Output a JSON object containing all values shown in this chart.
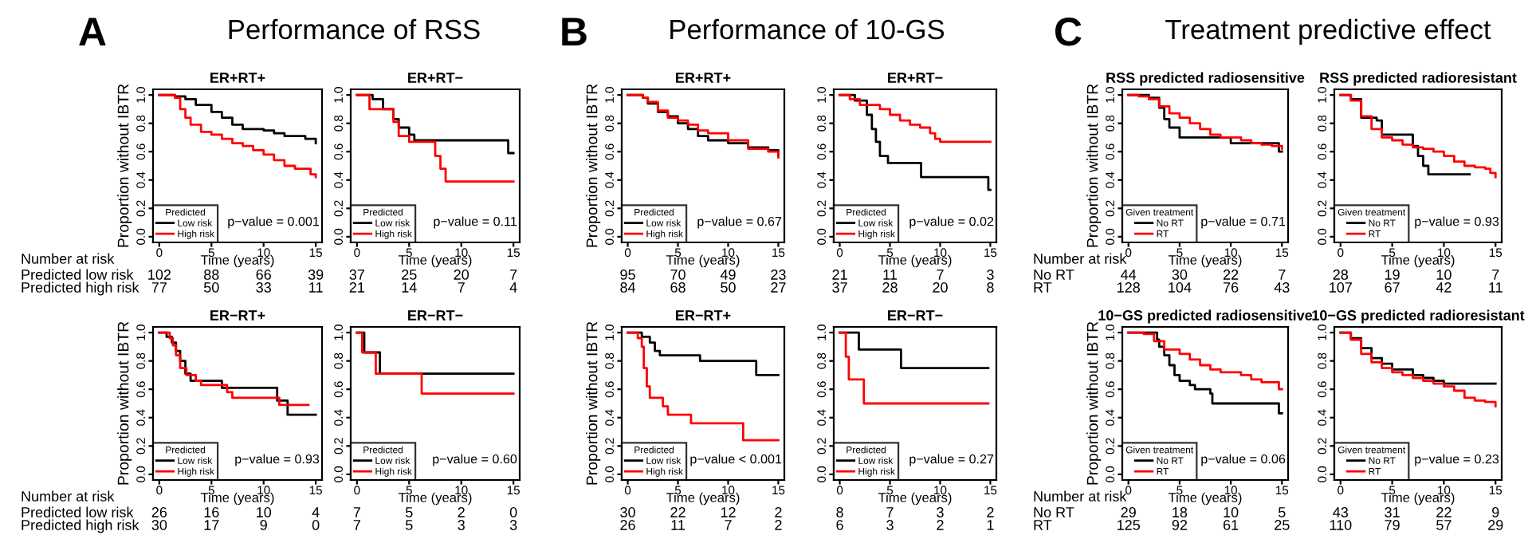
{
  "chart_data": [
    {
      "type": "other",
      "title": "Performance of RSS",
      "annotations": [
        "A"
      ]
    },
    {
      "type": "step",
      "title": "ER+RT+",
      "xlabel": "Time (years)",
      "ylabel": "Proportion without IBTR",
      "legend_title": "Predicted",
      "legend": "bottom left",
      "xlim": [
        -0.6,
        15.6
      ],
      "ylim": [
        -0.04,
        1.04
      ],
      "xticks": [
        0,
        5,
        10,
        15
      ],
      "yticks": [
        {
          "value": 0,
          "label": "0.0"
        },
        {
          "value": 0.2,
          "label": "0.2"
        },
        {
          "value": 0.4,
          "label": "0.4"
        },
        {
          "value": 0.6,
          "label": "0.6"
        },
        {
          "value": 0.8,
          "label": "0.8"
        },
        {
          "value": 1,
          "label": "1.0"
        }
      ],
      "annotations": [
        "p−value = 0.001",
        "102 88 66 39",
        "77 50 33 11"
      ],
      "series": [
        {
          "name": "Low risk",
          "color": "#000000",
          "x": [
            0,
            1.5,
            2.5,
            3.5,
            5,
            6,
            7,
            8,
            10,
            11,
            12,
            14,
            15
          ],
          "values": [
            1,
            0.99,
            0.97,
            0.93,
            0.88,
            0.84,
            0.79,
            0.76,
            0.75,
            0.73,
            0.71,
            0.69,
            0.66
          ]
        },
        {
          "name": "High risk",
          "color": "#ff0000",
          "x": [
            0,
            1.5,
            2,
            2.5,
            3,
            4,
            5,
            6,
            7,
            8,
            9,
            10,
            11,
            12,
            13,
            14.5,
            15
          ],
          "values": [
            1,
            0.98,
            0.9,
            0.84,
            0.79,
            0.74,
            0.72,
            0.69,
            0.66,
            0.64,
            0.61,
            0.58,
            0.54,
            0.5,
            0.48,
            0.44,
            0.42
          ]
        }
      ]
    },
    {
      "type": "step",
      "title": "ER+RT−",
      "xlabel": "Time (years)",
      "legend_title": "Predicted",
      "legend": "bottom left",
      "xlim": [
        -0.6,
        15.6
      ],
      "ylim": [
        -0.04,
        1.04
      ],
      "xticks": [
        0,
        5,
        10,
        15
      ],
      "yticks": [
        {
          "value": 0,
          "label": "0.0"
        },
        {
          "value": 0.2,
          "label": "0.2"
        },
        {
          "value": 0.4,
          "label": "0.4"
        },
        {
          "value": 0.6,
          "label": "0.6"
        },
        {
          "value": 0.8,
          "label": "0.8"
        },
        {
          "value": 1,
          "label": "1.0"
        }
      ],
      "annotations": [
        "p−value = 0.11",
        "37 25 20 7",
        "21 14 7 4"
      ],
      "series": [
        {
          "name": "Low risk",
          "color": "#000000",
          "x": [
            0,
            1.5,
            2.5,
            3.5,
            4,
            5,
            5.5,
            14.5,
            15
          ],
          "values": [
            1,
            0.97,
            0.9,
            0.83,
            0.77,
            0.72,
            0.68,
            0.59,
            0.59
          ]
        },
        {
          "name": "High risk",
          "color": "#ff0000",
          "x": [
            0,
            1.2,
            3.5,
            4,
            5,
            7.5,
            8,
            8.5,
            15
          ],
          "values": [
            1,
            0.9,
            0.81,
            0.71,
            0.67,
            0.57,
            0.48,
            0.39,
            0.39
          ]
        }
      ]
    },
    {
      "type": "step",
      "title": "ER−RT+",
      "xlabel": "Time (years)",
      "ylabel": "Proportion without IBTR",
      "legend_title": "Predicted",
      "legend": "bottom left",
      "xlim": [
        -0.6,
        15.6
      ],
      "ylim": [
        -0.04,
        1.04
      ],
      "xticks": [
        0,
        5,
        10,
        15
      ],
      "yticks": [
        {
          "value": 0,
          "label": "0.0"
        },
        {
          "value": 0.2,
          "label": "0.2"
        },
        {
          "value": 0.4,
          "label": "0.4"
        },
        {
          "value": 0.6,
          "label": "0.6"
        },
        {
          "value": 0.8,
          "label": "0.8"
        },
        {
          "value": 1,
          "label": "1.0"
        }
      ],
      "annotations": [
        "p−value = 0.93",
        "26 16 10 4",
        "30 17 9 0"
      ],
      "series": [
        {
          "name": "Low risk",
          "color": "#000000",
          "x": [
            0,
            0.7,
            1.2,
            1.6,
            2,
            2.5,
            3,
            6,
            11.3,
            12.3,
            15
          ],
          "values": [
            1,
            0.97,
            0.93,
            0.87,
            0.8,
            0.71,
            0.66,
            0.61,
            0.52,
            0.42,
            0.42
          ]
        },
        {
          "name": "High risk",
          "color": "#ff0000",
          "x": [
            0,
            1,
            1.3,
            1.6,
            2,
            2.6,
            3.5,
            4,
            6.5,
            7,
            11.5,
            14.3
          ],
          "values": [
            1,
            0.96,
            0.91,
            0.84,
            0.75,
            0.7,
            0.66,
            0.63,
            0.58,
            0.54,
            0.49,
            0.49
          ]
        }
      ]
    },
    {
      "type": "step",
      "title": "ER−RT−",
      "xlabel": "Time (years)",
      "legend_title": "Predicted",
      "legend": "bottom left",
      "xlim": [
        -0.6,
        15.6
      ],
      "ylim": [
        -0.04,
        1.04
      ],
      "xticks": [
        0,
        5,
        10,
        15
      ],
      "yticks": [
        {
          "value": 0,
          "label": "0.0"
        },
        {
          "value": 0.2,
          "label": "0.2"
        },
        {
          "value": 0.4,
          "label": "0.4"
        },
        {
          "value": 0.6,
          "label": "0.6"
        },
        {
          "value": 0.8,
          "label": "0.8"
        },
        {
          "value": 1,
          "label": "1.0"
        }
      ],
      "annotations": [
        "p−value = 0.60",
        "7 5 2 0",
        "7 5 3 3"
      ],
      "series": [
        {
          "name": "Low risk",
          "color": "#000000",
          "x": [
            0,
            0.7,
            2.2,
            15
          ],
          "values": [
            1,
            0.86,
            0.71,
            0.71
          ]
        },
        {
          "name": "High risk",
          "color": "#ff0000",
          "x": [
            0,
            0.5,
            1.8,
            6.2,
            15
          ],
          "values": [
            1,
            0.86,
            0.71,
            0.57,
            0.57
          ]
        }
      ]
    },
    {
      "type": "other",
      "annotations": [
        "Number at risk",
        "Predicted low risk",
        "Predicted high risk"
      ]
    },
    {
      "type": "other",
      "annotations": [
        "Number at risk",
        "Predicted low risk",
        "Predicted high risk"
      ]
    },
    {
      "type": "other",
      "title": "Performance of 10-GS",
      "annotations": [
        "B"
      ]
    },
    {
      "type": "step",
      "title": "ER+RT+",
      "xlabel": "Time (years)",
      "ylabel": "Proportion without IBTR",
      "legend_title": "Predicted",
      "legend": "bottom left",
      "xlim": [
        -0.6,
        15.6
      ],
      "ylim": [
        -0.04,
        1.04
      ],
      "xticks": [
        0,
        5,
        10,
        15
      ],
      "yticks": [
        {
          "value": 0,
          "label": "0.0"
        },
        {
          "value": 0.2,
          "label": "0.2"
        },
        {
          "value": 0.4,
          "label": "0.4"
        },
        {
          "value": 0.6,
          "label": "0.6"
        },
        {
          "value": 0.8,
          "label": "0.8"
        },
        {
          "value": 1,
          "label": "1.0"
        }
      ],
      "annotations": [
        "p−value = 0.67",
        "95 70 49 23",
        "84 68 50 27"
      ],
      "series": [
        {
          "name": "Low risk",
          "color": "#000000",
          "x": [
            0,
            1.5,
            2,
            3,
            4,
            5,
            6,
            7,
            8,
            10,
            12,
            14,
            15
          ],
          "values": [
            1,
            0.98,
            0.94,
            0.88,
            0.85,
            0.8,
            0.76,
            0.71,
            0.68,
            0.66,
            0.63,
            0.61,
            0.57
          ]
        },
        {
          "name": "High risk",
          "color": "#ff0000",
          "x": [
            0,
            1.5,
            2,
            3,
            4,
            5,
            6,
            7,
            8,
            10,
            12,
            14,
            15
          ],
          "values": [
            1,
            0.98,
            0.95,
            0.89,
            0.84,
            0.82,
            0.79,
            0.75,
            0.73,
            0.68,
            0.62,
            0.6,
            0.56
          ]
        }
      ]
    },
    {
      "type": "step",
      "title": "ER+RT−",
      "xlabel": "Time (years)",
      "legend_title": "Predicted",
      "legend": "bottom left",
      "xlim": [
        -0.6,
        15.6
      ],
      "ylim": [
        -0.04,
        1.04
      ],
      "xticks": [
        0,
        5,
        10,
        15
      ],
      "yticks": [
        {
          "value": 0,
          "label": "0.0"
        },
        {
          "value": 0.2,
          "label": "0.2"
        },
        {
          "value": 0.4,
          "label": "0.4"
        },
        {
          "value": 0.6,
          "label": "0.6"
        },
        {
          "value": 0.8,
          "label": "0.8"
        },
        {
          "value": 1,
          "label": "1.0"
        }
      ],
      "annotations": [
        "p−value = 0.02",
        "21 11 7 3",
        "37 28 20 8"
      ],
      "series": [
        {
          "name": "Low risk",
          "color": "#000000",
          "x": [
            0,
            1.5,
            2.7,
            3.2,
            3.6,
            4,
            4.8,
            8.1,
            14.8,
            15
          ],
          "values": [
            1,
            0.96,
            0.86,
            0.76,
            0.67,
            0.57,
            0.52,
            0.42,
            0.33,
            0.33
          ]
        },
        {
          "name": "High risk",
          "color": "#ff0000",
          "x": [
            0,
            1,
            2,
            4,
            5,
            6,
            7,
            8,
            9,
            9.5,
            10,
            15
          ],
          "values": [
            1,
            0.97,
            0.93,
            0.9,
            0.86,
            0.82,
            0.79,
            0.77,
            0.73,
            0.69,
            0.67,
            0.67
          ]
        }
      ]
    },
    {
      "type": "step",
      "title": "ER−RT+",
      "xlabel": "Time (years)",
      "ylabel": "Proportion without IBTR",
      "legend_title": "Predicted",
      "legend": "bottom left",
      "xlim": [
        -0.6,
        15.6
      ],
      "ylim": [
        -0.04,
        1.04
      ],
      "xticks": [
        0,
        5,
        10,
        15
      ],
      "yticks": [
        {
          "value": 0,
          "label": "0.0"
        },
        {
          "value": 0.2,
          "label": "0.2"
        },
        {
          "value": 0.4,
          "label": "0.4"
        },
        {
          "value": 0.6,
          "label": "0.6"
        },
        {
          "value": 0.8,
          "label": "0.8"
        },
        {
          "value": 1,
          "label": "1.0"
        }
      ],
      "annotations": [
        "p−value < 0.001",
        "30 22 12 2",
        "26 11 7 2"
      ],
      "series": [
        {
          "name": "Low risk",
          "color": "#000000",
          "x": [
            0,
            1.4,
            2.2,
            2.7,
            3.2,
            7.2,
            12.8,
            15
          ],
          "values": [
            1,
            0.97,
            0.93,
            0.87,
            0.84,
            0.8,
            0.7,
            0.7
          ]
        },
        {
          "name": "High risk",
          "color": "#ff0000",
          "x": [
            0,
            1,
            1.4,
            1.6,
            1.9,
            2.2,
            3.5,
            4,
            6.3,
            11.5,
            15
          ],
          "values": [
            1,
            0.96,
            0.9,
            0.75,
            0.62,
            0.54,
            0.48,
            0.42,
            0.36,
            0.24,
            0.24
          ]
        }
      ]
    },
    {
      "type": "step",
      "title": "ER−RT−",
      "xlabel": "Time (years)",
      "legend_title": "Predicted",
      "legend": "bottom left",
      "xlim": [
        -0.6,
        15.6
      ],
      "ylim": [
        -0.04,
        1.04
      ],
      "xticks": [
        0,
        5,
        10,
        15
      ],
      "yticks": [
        {
          "value": 0,
          "label": "0.0"
        },
        {
          "value": 0.2,
          "label": "0.2"
        },
        {
          "value": 0.4,
          "label": "0.4"
        },
        {
          "value": 0.6,
          "label": "0.6"
        },
        {
          "value": 0.8,
          "label": "0.8"
        },
        {
          "value": 1,
          "label": "1.0"
        }
      ],
      "annotations": [
        "p−value = 0.27",
        "8 7 3 2",
        "6 3 2 1"
      ],
      "series": [
        {
          "name": "Low risk",
          "color": "#000000",
          "x": [
            0,
            1.9,
            6.1,
            14.8
          ],
          "values": [
            1,
            0.88,
            0.75,
            0.75
          ]
        },
        {
          "name": "High risk",
          "color": "#ff0000",
          "x": [
            0,
            0.6,
            0.9,
            2.4,
            14.8
          ],
          "values": [
            1,
            0.83,
            0.67,
            0.5,
            0.5
          ]
        }
      ]
    },
    {
      "type": "other",
      "title": "Treatment predictive effect",
      "annotations": [
        "C"
      ]
    },
    {
      "type": "step",
      "title": "RSS predicted radiosensitive",
      "xlabel": "Time (years)",
      "ylabel": "Proportion without IBTR",
      "legend_title": "Given treatment",
      "legend": "bottom left",
      "xlim": [
        -0.6,
        15.6
      ],
      "ylim": [
        -0.04,
        1.04
      ],
      "xticks": [
        0,
        5,
        10,
        15
      ],
      "yticks": [
        {
          "value": 0,
          "label": "0.0"
        },
        {
          "value": 0.2,
          "label": "0.2"
        },
        {
          "value": 0.4,
          "label": "0.4"
        },
        {
          "value": 0.6,
          "label": "0.6"
        },
        {
          "value": 0.8,
          "label": "0.8"
        },
        {
          "value": 1,
          "label": "1.0"
        }
      ],
      "annotations": [
        "p−value = 0.71",
        "44 30 22 7",
        "128 104 76 43"
      ],
      "series": [
        {
          "name": "No RT",
          "color": "#000000",
          "x": [
            0,
            2,
            3,
            3.5,
            4,
            5,
            10,
            14.7,
            15
          ],
          "values": [
            1,
            0.98,
            0.91,
            0.83,
            0.77,
            0.7,
            0.66,
            0.6,
            0.6
          ]
        },
        {
          "name": "RT",
          "color": "#ff0000",
          "x": [
            0,
            1,
            2,
            3,
            4,
            5,
            6,
            7,
            8,
            9,
            11,
            12,
            13,
            14,
            15
          ],
          "values": [
            1,
            0.99,
            0.97,
            0.92,
            0.87,
            0.84,
            0.8,
            0.76,
            0.72,
            0.7,
            0.68,
            0.66,
            0.65,
            0.64,
            0.62
          ]
        }
      ]
    },
    {
      "type": "step",
      "title": "RSS predicted radioresistant",
      "xlabel": "Time (years)",
      "legend_title": "Given treatment",
      "legend": "bottom left",
      "xlim": [
        -0.6,
        15.6
      ],
      "ylim": [
        -0.04,
        1.04
      ],
      "xticks": [
        0,
        5,
        10,
        15
      ],
      "yticks": [
        {
          "value": 0,
          "label": "0.0"
        },
        {
          "value": 0.2,
          "label": "0.2"
        },
        {
          "value": 0.4,
          "label": "0.4"
        },
        {
          "value": 0.6,
          "label": "0.6"
        },
        {
          "value": 0.8,
          "label": "0.8"
        },
        {
          "value": 1,
          "label": "1.0"
        }
      ],
      "annotations": [
        "p−value = 0.93",
        "28 19 10 7",
        "107 67 42 11"
      ],
      "series": [
        {
          "name": "No RT",
          "color": "#000000",
          "x": [
            0,
            1,
            2,
            3.5,
            4,
            7,
            7.5,
            8,
            8.5,
            12.5
          ],
          "values": [
            1,
            0.97,
            0.84,
            0.82,
            0.72,
            0.64,
            0.57,
            0.5,
            0.44,
            0.44
          ]
        },
        {
          "name": "RT",
          "color": "#ff0000",
          "x": [
            0,
            1,
            2,
            3,
            4,
            5,
            6,
            7,
            8,
            9,
            10,
            11,
            12,
            13,
            14,
            14.5,
            15
          ],
          "values": [
            1,
            0.96,
            0.85,
            0.76,
            0.7,
            0.68,
            0.65,
            0.63,
            0.62,
            0.6,
            0.57,
            0.53,
            0.5,
            0.49,
            0.48,
            0.45,
            0.42
          ]
        }
      ]
    },
    {
      "type": "step",
      "title": "10−GS predicted radiosensitive",
      "xlabel": "Time (years)",
      "ylabel": "Proportion without IBTR",
      "legend_title": "Given treatment",
      "legend": "bottom left",
      "xlim": [
        -0.6,
        15.6
      ],
      "ylim": [
        -0.04,
        1.04
      ],
      "xticks": [
        0,
        5,
        10,
        15
      ],
      "yticks": [
        {
          "value": 0,
          "label": "0.0"
        },
        {
          "value": 0.2,
          "label": "0.2"
        },
        {
          "value": 0.4,
          "label": "0.4"
        },
        {
          "value": 0.6,
          "label": "0.6"
        },
        {
          "value": 0.8,
          "label": "0.8"
        },
        {
          "value": 1,
          "label": "1.0"
        }
      ],
      "annotations": [
        "p−value = 0.06",
        "29 18 10 5",
        "125 92 61 25"
      ],
      "series": [
        {
          "name": "No RT",
          "color": "#000000",
          "x": [
            0,
            2.8,
            3,
            3.5,
            4,
            4.5,
            5,
            6,
            6.5,
            8,
            8.2,
            14.7,
            15
          ],
          "values": [
            1,
            0.95,
            0.9,
            0.84,
            0.77,
            0.7,
            0.66,
            0.63,
            0.6,
            0.57,
            0.5,
            0.43,
            0.43
          ]
        },
        {
          "name": "RT",
          "color": "#ff0000",
          "x": [
            0,
            1.5,
            2.5,
            3.5,
            5,
            6,
            7,
            8,
            9,
            11,
            12,
            13,
            14.7,
            15
          ],
          "values": [
            1,
            0.99,
            0.94,
            0.88,
            0.85,
            0.81,
            0.77,
            0.74,
            0.72,
            0.7,
            0.67,
            0.65,
            0.6,
            0.6
          ]
        }
      ]
    },
    {
      "type": "step",
      "title": "10−GS predicted radioresistant",
      "xlabel": "Time (years)",
      "legend_title": "Given treatment",
      "legend": "bottom left",
      "xlim": [
        -0.6,
        15.6
      ],
      "ylim": [
        -0.04,
        1.04
      ],
      "xticks": [
        0,
        5,
        10,
        15
      ],
      "yticks": [
        {
          "value": 0,
          "label": "0.0"
        },
        {
          "value": 0.2,
          "label": "0.2"
        },
        {
          "value": 0.4,
          "label": "0.4"
        },
        {
          "value": 0.6,
          "label": "0.6"
        },
        {
          "value": 0.8,
          "label": "0.8"
        },
        {
          "value": 1,
          "label": "1.0"
        }
      ],
      "annotations": [
        "p−value = 0.23",
        "43 31 22 9",
        "110 79 57 29"
      ],
      "series": [
        {
          "name": "No RT",
          "color": "#000000",
          "x": [
            0,
            1,
            2,
            3,
            4,
            5,
            7,
            8,
            9,
            10,
            15
          ],
          "values": [
            1,
            0.96,
            0.89,
            0.82,
            0.78,
            0.74,
            0.7,
            0.68,
            0.66,
            0.64,
            0.64
          ]
        },
        {
          "name": "RT",
          "color": "#ff0000",
          "x": [
            0,
            1,
            2,
            3,
            4,
            5,
            6,
            7,
            8,
            9,
            10,
            11,
            12,
            13,
            14,
            15
          ],
          "values": [
            1,
            0.95,
            0.85,
            0.79,
            0.75,
            0.72,
            0.7,
            0.68,
            0.66,
            0.64,
            0.62,
            0.59,
            0.54,
            0.52,
            0.51,
            0.48
          ]
        }
      ]
    },
    {
      "type": "other",
      "annotations": [
        "Number at risk",
        "No RT",
        "RT"
      ]
    },
    {
      "type": "other",
      "annotations": [
        "Number at risk",
        "No RT",
        "RT"
      ]
    }
  ]
}
